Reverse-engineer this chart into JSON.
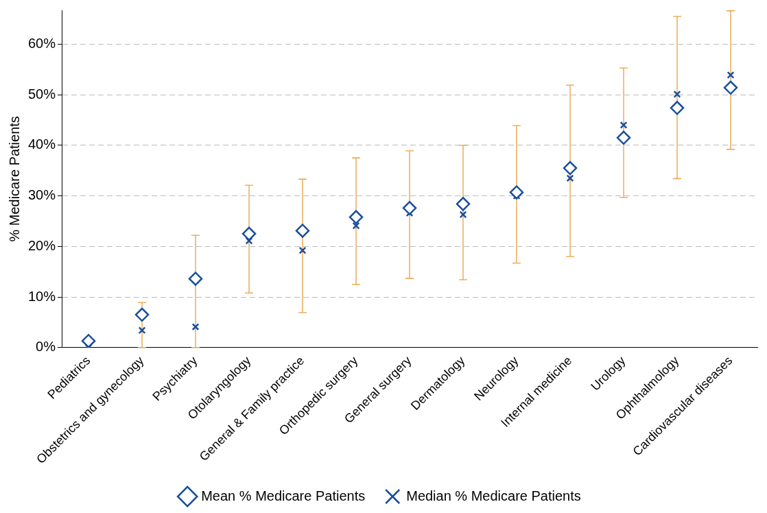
{
  "chart_data": {
    "type": "scatter",
    "ylabel": "% Medicare Patients",
    "categories": [
      "Pediatrics",
      "Obstetrics and gynecology",
      "Psychiatry",
      "Otolaryngology",
      "General & Family practice",
      "Orthopedic surgery",
      "General surgery",
      "Dermatology",
      "Neurology",
      "Internal medicine",
      "Urology",
      "Ophthalmology",
      "Cardiovascular diseases"
    ],
    "series": [
      {
        "name": "Mean % Medicare Patients",
        "color": "#1a4f9c",
        "marker": "diamond",
        "values": [
          1.3,
          6.5,
          13.6,
          22.5,
          23.1,
          25.8,
          27.6,
          28.4,
          30.7,
          35.5,
          41.5,
          47.4,
          51.4
        ],
        "errors": [
          null,
          [
            0,
            8.9
          ],
          [
            0,
            22.2
          ],
          [
            10.8,
            32.1
          ],
          [
            6.9,
            33.3
          ],
          [
            12.5,
            37.5
          ],
          [
            13.7,
            38.9
          ],
          [
            13.4,
            40.0
          ],
          [
            16.7,
            43.9
          ],
          [
            18.0,
            51.9
          ],
          [
            29.7,
            55.3
          ],
          [
            33.4,
            65.5
          ],
          [
            39.2,
            66.6
          ]
        ]
      },
      {
        "name": "Median % Medicare Patients",
        "color": "#1a4f9c",
        "marker": "cross",
        "values": [
          0,
          3.4,
          4.1,
          21.1,
          19.2,
          24.1,
          26.6,
          26.3,
          30.0,
          33.5,
          44.0,
          50.1,
          53.9
        ]
      }
    ],
    "ylim": [
      0,
      66.7
    ],
    "yticks": [
      {
        "value": 0,
        "label": "0%"
      },
      {
        "value": 10,
        "label": "10%"
      },
      {
        "value": 20,
        "label": "20%"
      },
      {
        "value": 30,
        "label": "30%"
      },
      {
        "value": 40,
        "label": "40%"
      },
      {
        "value": 50,
        "label": "50%"
      },
      {
        "value": 60,
        "label": "60%"
      }
    ],
    "grid": "y",
    "legend": "bottom"
  }
}
